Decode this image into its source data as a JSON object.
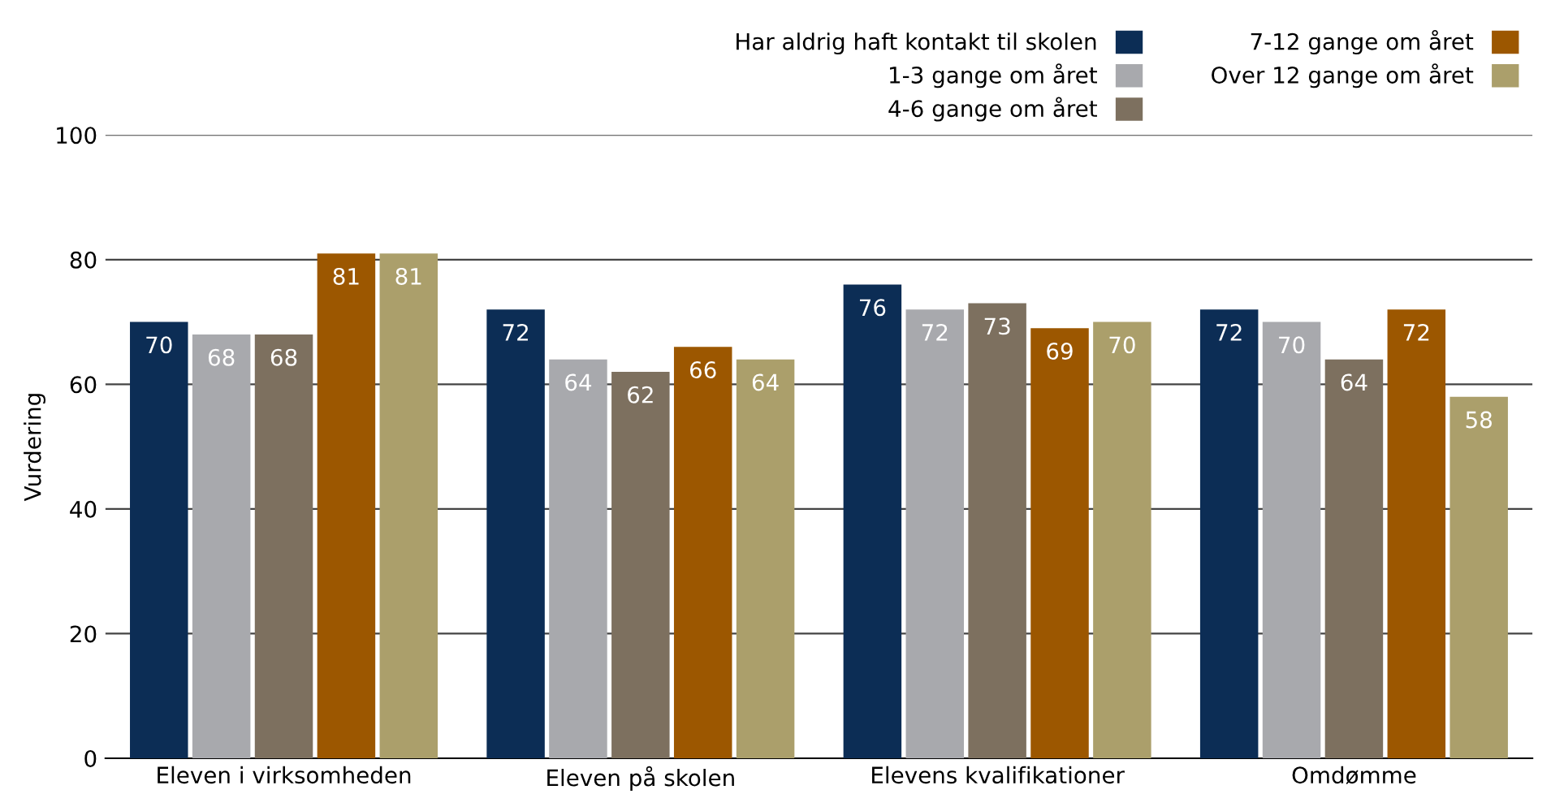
{
  "chart_data": {
    "type": "bar",
    "ylabel": "Vurdering",
    "categories": [
      "Eleven i virksomheden",
      "Eleven på skolen",
      "Elevens kvalifikationer",
      "Omdømme"
    ],
    "series": [
      {
        "name": "Har aldrig haft kontakt til skolen",
        "color": "#0c2d55",
        "values": [
          70,
          72,
          76,
          72
        ]
      },
      {
        "name": "1-3 gange om året",
        "color": "#a8a9ad",
        "values": [
          68,
          64,
          72,
          70
        ]
      },
      {
        "name": "4-6 gange om året",
        "color": "#7d705f",
        "values": [
          68,
          62,
          73,
          64
        ]
      },
      {
        "name": "7-12 gange om året",
        "color": "#9c5700",
        "values": [
          81,
          66,
          69,
          72
        ]
      },
      {
        "name": "Over 12 gange om året",
        "color": "#ab9f6b",
        "values": [
          81,
          64,
          70,
          58
        ]
      }
    ],
    "ylim": [
      0,
      100
    ],
    "yticks": [
      0,
      20,
      40,
      60,
      80,
      100
    ],
    "grid": "y",
    "legend": "top right",
    "data_labels": true
  }
}
